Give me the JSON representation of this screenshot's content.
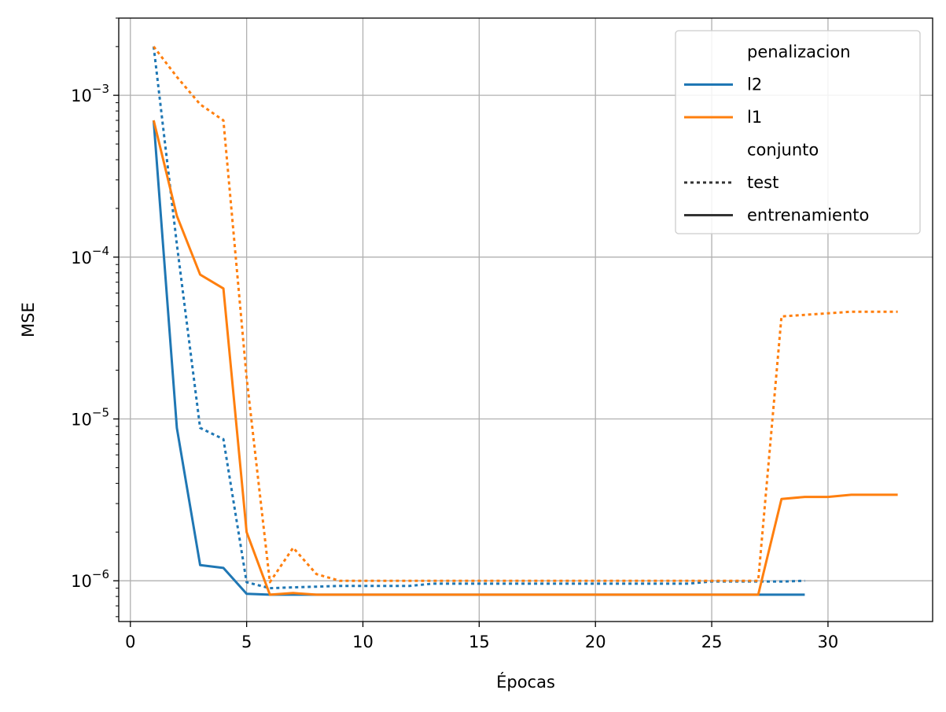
{
  "chart_data": {
    "type": "line",
    "title": "",
    "xlabel": "Épocas",
    "ylabel": "MSE",
    "xlim": [
      -0.5,
      34.5
    ],
    "ylim": [
      5.6e-07,
      0.003
    ],
    "yscale": "log",
    "grid": true,
    "legend_position": "top-right",
    "x_ticks": [
      {
        "value": 0,
        "label": "0"
      },
      {
        "value": 5,
        "label": "5"
      },
      {
        "value": 10,
        "label": "10"
      },
      {
        "value": 15,
        "label": "15"
      },
      {
        "value": 20,
        "label": "20"
      },
      {
        "value": 25,
        "label": "25"
      },
      {
        "value": 30,
        "label": "30"
      }
    ],
    "y_ticks": [
      {
        "value": 1e-06,
        "base": "10",
        "exp": "−6"
      },
      {
        "value": 1e-05,
        "base": "10",
        "exp": "−5"
      },
      {
        "value": 0.0001,
        "base": "10",
        "exp": "−4"
      },
      {
        "value": 0.001,
        "base": "10",
        "exp": "−3"
      }
    ],
    "legend": {
      "groups": [
        {
          "title": "penalizacion",
          "entries": [
            {
              "label": "l2",
              "color": "#1f77b4",
              "dash": "solid"
            },
            {
              "label": "l1",
              "color": "#ff7f0e",
              "dash": "solid"
            }
          ]
        },
        {
          "title": "conjunto",
          "entries": [
            {
              "label": "test",
              "color": "#333333",
              "dash": "dotted"
            },
            {
              "label": "entrenamiento",
              "color": "#333333",
              "dash": "solid"
            }
          ]
        }
      ]
    },
    "series": [
      {
        "penalizacion": "l2",
        "conjunto": "test",
        "color": "#1f77b4",
        "dash": "dotted",
        "x": [
          1,
          2,
          3,
          4,
          5,
          6,
          7,
          8,
          9,
          10,
          11,
          12,
          13,
          14,
          15,
          16,
          17,
          18,
          19,
          20,
          21,
          22,
          23,
          24,
          25,
          26,
          27,
          28,
          29
        ],
        "y": [
          0.002,
          0.00012,
          8.8e-06,
          7.5e-06,
          9.8e-07,
          9e-07,
          9.1e-07,
          9.2e-07,
          9.3e-07,
          9.3e-07,
          9.3e-07,
          9.3e-07,
          9.6e-07,
          9.6e-07,
          9.6e-07,
          9.6e-07,
          9.6e-07,
          9.6e-07,
          9.6e-07,
          9.6e-07,
          9.6e-07,
          9.6e-07,
          9.6e-07,
          9.6e-07,
          9.9e-07,
          9.9e-07,
          9.9e-07,
          9.9e-07,
          1e-06
        ]
      },
      {
        "penalizacion": "l2",
        "conjunto": "entrenamiento",
        "color": "#1f77b4",
        "dash": "solid",
        "x": [
          1,
          2,
          3,
          4,
          5,
          6,
          7,
          8,
          9,
          10,
          11,
          12,
          13,
          14,
          15,
          16,
          17,
          18,
          19,
          20,
          21,
          22,
          23,
          24,
          25,
          26,
          27,
          28,
          29
        ],
        "y": [
          0.0007,
          8.8e-06,
          1.25e-06,
          1.2e-06,
          8.3e-07,
          8.2e-07,
          8.2e-07,
          8.2e-07,
          8.2e-07,
          8.2e-07,
          8.2e-07,
          8.2e-07,
          8.2e-07,
          8.2e-07,
          8.2e-07,
          8.2e-07,
          8.2e-07,
          8.2e-07,
          8.2e-07,
          8.2e-07,
          8.2e-07,
          8.2e-07,
          8.2e-07,
          8.2e-07,
          8.2e-07,
          8.2e-07,
          8.2e-07,
          8.2e-07,
          8.2e-07
        ]
      },
      {
        "penalizacion": "l1",
        "conjunto": "test",
        "color": "#ff7f0e",
        "dash": "dotted",
        "x": [
          1,
          2,
          3,
          4,
          5,
          6,
          7,
          8,
          9,
          10,
          11,
          12,
          13,
          14,
          15,
          16,
          17,
          18,
          19,
          20,
          21,
          22,
          23,
          24,
          25,
          26,
          27,
          28,
          29,
          30,
          31,
          32,
          33
        ],
        "y": [
          0.002,
          0.0013,
          0.00088,
          0.0007,
          1.8e-05,
          9.8e-07,
          1.6e-06,
          1.1e-06,
          1e-06,
          1e-06,
          1e-06,
          1e-06,
          1e-06,
          1e-06,
          1e-06,
          1e-06,
          1e-06,
          1e-06,
          1e-06,
          1e-06,
          1e-06,
          1e-06,
          1e-06,
          1e-06,
          1e-06,
          1e-06,
          1e-06,
          4.3e-05,
          4.4e-05,
          4.5e-05,
          4.6e-05,
          4.6e-05,
          4.6e-05
        ]
      },
      {
        "penalizacion": "l1",
        "conjunto": "entrenamiento",
        "color": "#ff7f0e",
        "dash": "solid",
        "x": [
          1,
          2,
          3,
          4,
          5,
          6,
          7,
          8,
          9,
          10,
          11,
          12,
          13,
          14,
          15,
          16,
          17,
          18,
          19,
          20,
          21,
          22,
          23,
          24,
          25,
          26,
          27,
          28,
          29,
          30,
          31,
          32,
          33
        ],
        "y": [
          0.0007,
          0.00018,
          7.8e-05,
          6.4e-05,
          2e-06,
          8.2e-07,
          8.4e-07,
          8.2e-07,
          8.2e-07,
          8.2e-07,
          8.2e-07,
          8.2e-07,
          8.2e-07,
          8.2e-07,
          8.2e-07,
          8.2e-07,
          8.2e-07,
          8.2e-07,
          8.2e-07,
          8.2e-07,
          8.2e-07,
          8.2e-07,
          8.2e-07,
          8.2e-07,
          8.2e-07,
          8.2e-07,
          8.2e-07,
          3.2e-06,
          3.3e-06,
          3.3e-06,
          3.4e-06,
          3.4e-06,
          3.4e-06
        ]
      }
    ]
  }
}
